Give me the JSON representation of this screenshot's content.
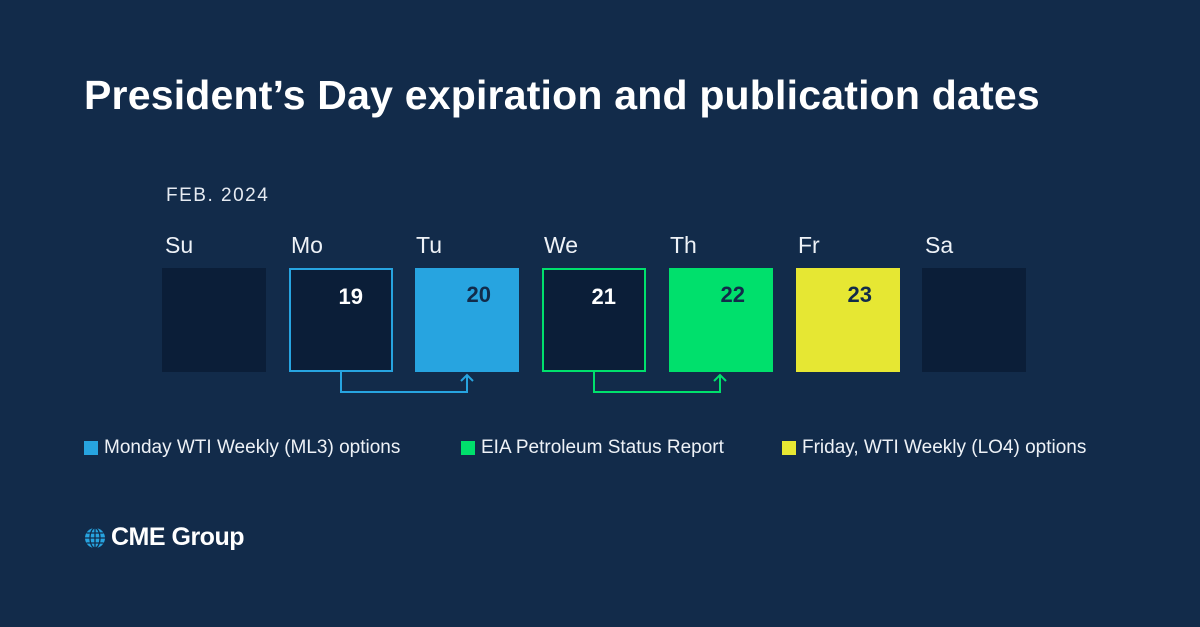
{
  "title": "President’s Day expiration and publication dates",
  "month_label": "FEB. 2024",
  "colors": {
    "background": "#122b4a",
    "empty_cell": "#0b1e38",
    "blue": "#27a4e0",
    "green": "#00e06c",
    "yellow": "#e6e733"
  },
  "days": [
    {
      "name": "Su",
      "date": "",
      "style": "empty"
    },
    {
      "name": "Mo",
      "date": "19",
      "style": "outline-blue"
    },
    {
      "name": "Tu",
      "date": "20",
      "style": "fill-blue"
    },
    {
      "name": "We",
      "date": "21",
      "style": "outline-green"
    },
    {
      "name": "Th",
      "date": "22",
      "style": "fill-green"
    },
    {
      "name": "Fr",
      "date": "23",
      "style": "fill-yellow"
    },
    {
      "name": "Sa",
      "date": "",
      "style": "empty"
    }
  ],
  "connectors": [
    {
      "from": "19",
      "to": "20",
      "color": "blue"
    },
    {
      "from": "21",
      "to": "22",
      "color": "green"
    }
  ],
  "legend": [
    {
      "label": "Monday WTI Weekly (ML3) options",
      "color": "blue"
    },
    {
      "label": "EIA Petroleum Status Report",
      "color": "green"
    },
    {
      "label": "Friday, WTI Weekly (LO4) options",
      "color": "yellow"
    }
  ],
  "logo": {
    "text": "CME Group",
    "icon": "globe-icon"
  }
}
